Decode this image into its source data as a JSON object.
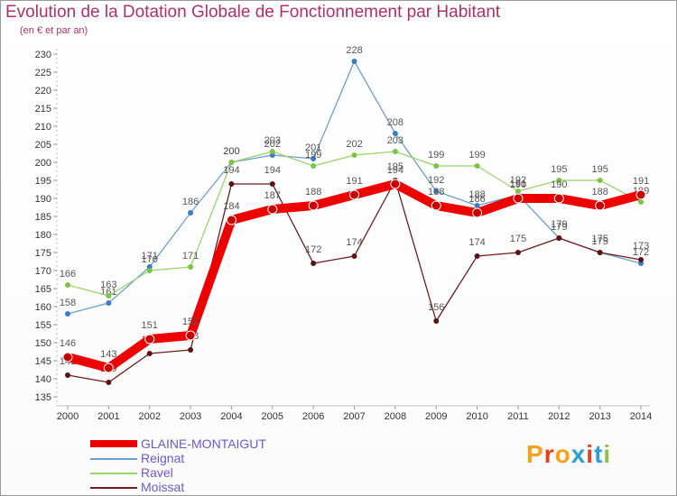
{
  "title": "Evolution de la Dotation Globale de Fonctionnement par Habitant",
  "subtitle": "(en € et par an)",
  "logo": {
    "text": "Proxiti",
    "letter_colors": [
      "#f4a11b",
      "#e8401c",
      "#f4a11b",
      "#2a9fd8",
      "#e8401c",
      "#2a9fd8",
      "#8bc34a"
    ]
  },
  "chart_data": {
    "type": "line",
    "title": "Evolution de la Dotation Globale de Fonctionnement par Habitant",
    "subtitle": "(en € et par an)",
    "xlabel": "",
    "ylabel": "",
    "x": [
      "2000",
      "2001",
      "2002",
      "2003",
      "2004",
      "2005",
      "2006",
      "2007",
      "2008",
      "2009",
      "2010",
      "2011",
      "2012",
      "2013",
      "2014"
    ],
    "ylim": [
      135,
      230
    ],
    "yticks": [
      135,
      140,
      145,
      150,
      155,
      160,
      165,
      170,
      175,
      180,
      185,
      190,
      195,
      200,
      205,
      210,
      215,
      220,
      225,
      230
    ],
    "grid": false,
    "legend_position": "bottom-left",
    "series": [
      {
        "name": "Reignat",
        "color": "#6a9fd0",
        "marker_color": "#3b7cc4",
        "values": [
          158,
          161,
          171,
          186,
          200,
          202,
          201,
          228,
          208,
          192,
          188,
          191,
          179,
          175,
          172
        ]
      },
      {
        "name": "Ravel",
        "color": "#9ad46a",
        "marker_color": "#7cc443",
        "values": [
          166,
          163,
          170,
          171,
          200,
          203,
          199,
          202,
          203,
          199,
          199,
          192,
          195,
          195,
          189
        ]
      },
      {
        "name": "Moissat",
        "color": "#6e1c1c",
        "marker_color": "#5a1414",
        "values": [
          141,
          139,
          147,
          148,
          194,
          194,
          172,
          174,
          195,
          156,
          174,
          175,
          179,
          175,
          173
        ]
      },
      {
        "name": "GLAINE-MONTAIGUT",
        "color": "#ee0000",
        "marker_color": "#cc0000",
        "values": [
          146,
          143,
          151,
          152,
          184,
          187,
          188,
          191,
          194,
          188,
          186,
          190,
          190,
          188,
          191
        ]
      }
    ]
  }
}
